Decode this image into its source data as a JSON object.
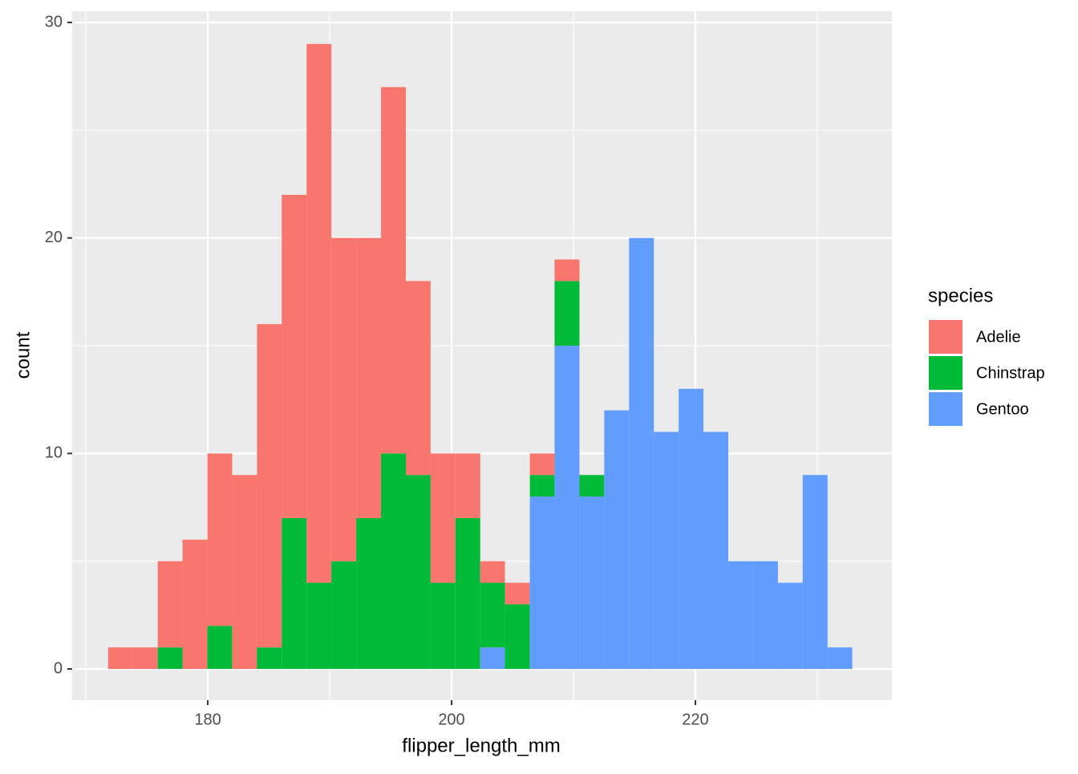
{
  "chart_data": {
    "type": "histogram",
    "x_label": "flipper_length_mm",
    "y_label": "count",
    "legend_title": "species",
    "legend_position": "right",
    "bins": [
      171.83,
      173.86,
      175.9,
      177.93,
      179.97,
      182.0,
      184.04,
      186.07,
      188.11,
      190.14,
      192.18,
      194.21,
      196.25,
      198.28,
      200.31,
      202.35,
      204.38,
      206.42,
      208.45,
      210.49,
      212.52,
      214.56,
      216.59,
      218.63,
      220.66,
      222.7,
      224.73,
      226.77,
      228.8,
      230.84,
      232.87
    ],
    "series": [
      {
        "name": "Adelie",
        "color": "#f8766d",
        "values": [
          1,
          1,
          4,
          6,
          8,
          9,
          15,
          15,
          25,
          15,
          13,
          17,
          9,
          6,
          3,
          1,
          1,
          1,
          1,
          0,
          0,
          0,
          0,
          0,
          0,
          0,
          0,
          0,
          0,
          0
        ]
      },
      {
        "name": "Chinstrap",
        "color": "#00ba38",
        "values": [
          0,
          0,
          1,
          0,
          2,
          0,
          1,
          7,
          4,
          5,
          7,
          10,
          9,
          4,
          7,
          3,
          3,
          1,
          3,
          1,
          0,
          0,
          0,
          0,
          0,
          0,
          0,
          0,
          0,
          0
        ]
      },
      {
        "name": "Gentoo",
        "color": "#619cff",
        "values": [
          0,
          0,
          0,
          0,
          0,
          0,
          0,
          0,
          0,
          0,
          0,
          0,
          0,
          0,
          0,
          1,
          0,
          8,
          15,
          8,
          12,
          20,
          11,
          13,
          11,
          5,
          5,
          4,
          9,
          1
        ]
      }
    ],
    "stacked": true,
    "xlim": [
      168.88,
      236.12
    ],
    "xticks": [
      180,
      200,
      220
    ],
    "xminor": [
      170,
      190,
      210,
      230
    ],
    "ylim": [
      -1.45,
      30.52
    ],
    "yticks": [
      0,
      10,
      20,
      30
    ],
    "yminor": [
      5,
      15,
      25
    ],
    "grid": true
  }
}
